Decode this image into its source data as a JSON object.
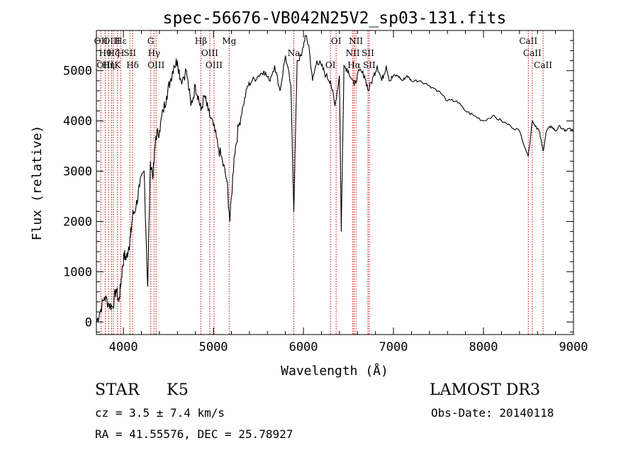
{
  "chart_data": {
    "type": "line",
    "title": "spec-56676-VB042N25V2_sp03-131.fits",
    "xlabel": "Wavelength (Å)",
    "ylabel": "Flux (relative)",
    "xlim": [
      3700,
      9000
    ],
    "ylim": [
      -250,
      5800
    ],
    "xticks": [
      4000,
      5000,
      6000,
      7000,
      8000,
      9000
    ],
    "yticks": [
      0,
      1000,
      2000,
      3000,
      4000,
      5000
    ],
    "grid": false,
    "line_color": "#000000",
    "marker_color": "#cc0000",
    "series": [
      {
        "x": [
          3700,
          3740,
          3790,
          3840,
          3880,
          3920,
          3950,
          3970,
          3990,
          4010,
          4030,
          4060,
          4080,
          4100,
          4140,
          4180,
          4230,
          4270,
          4300,
          4330,
          4360,
          4400,
          4440,
          4480,
          4520,
          4560,
          4600,
          4640,
          4700,
          4750,
          4800,
          4830,
          4861,
          4900,
          4940,
          5000,
          5050,
          5100,
          5150,
          5183,
          5230,
          5280,
          5330,
          5380,
          5430,
          5500,
          5560,
          5620,
          5680,
          5740,
          5800,
          5860,
          5893,
          5930,
          5980,
          6020,
          6060,
          6100,
          6150,
          6200,
          6250,
          6300,
          6350,
          6400,
          6420,
          6450,
          6500,
          6563,
          6620,
          6680,
          6720,
          6780,
          6820,
          6870,
          6920,
          6960,
          7000,
          7050,
          7100,
          7150,
          7200,
          7300,
          7400,
          7500,
          7600,
          7700,
          7800,
          7900,
          8000,
          8100,
          8200,
          8300,
          8400,
          8498,
          8542,
          8580,
          8620,
          8662,
          8700,
          8750,
          8800,
          8850,
          8900,
          8950,
          9000
        ],
        "values": [
          0,
          200,
          500,
          350,
          300,
          650,
          400,
          750,
          1100,
          1350,
          1250,
          1500,
          1700,
          2100,
          2300,
          2700,
          3000,
          700,
          3200,
          2900,
          3700,
          3800,
          4200,
          4500,
          4800,
          5100,
          5200,
          4800,
          5000,
          4300,
          4700,
          4500,
          4200,
          4500,
          4200,
          3900,
          3500,
          3200,
          2800,
          2000,
          3300,
          3900,
          4300,
          4700,
          4800,
          4900,
          5000,
          4800,
          5100,
          4600,
          5300,
          4700,
          2200,
          5200,
          5300,
          5700,
          5500,
          4800,
          5200,
          5100,
          4900,
          4800,
          4300,
          4900,
          1800,
          5100,
          5000,
          4700,
          5000,
          4900,
          4600,
          4900,
          5100,
          4800,
          5100,
          4800,
          4900,
          4900,
          4800,
          4900,
          4800,
          4800,
          4700,
          4600,
          4400,
          4400,
          4200,
          4100,
          4000,
          4100,
          4000,
          3900,
          3800,
          3300,
          4000,
          3900,
          3800,
          3400,
          3800,
          3900,
          3800,
          3900,
          3800,
          3850,
          3800
        ]
      }
    ],
    "lines": [
      {
        "x": 3750,
        "labels": [
          "OII"
        ]
      },
      {
        "x": 3798,
        "labels": [
          "Hθ",
          "OIII"
        ]
      },
      {
        "x": 3835,
        "labels": [
          "Hη"
        ]
      },
      {
        "x": 3869,
        "labels": [
          "OIII"
        ]
      },
      {
        "x": 3889,
        "labels": [
          "Hζ"
        ]
      },
      {
        "x": 3934,
        "labels": [
          "K"
        ]
      },
      {
        "x": 3970,
        "labels": [
          "Hε",
          "H"
        ]
      },
      {
        "x": 4072,
        "labels": [
          "SII"
        ]
      },
      {
        "x": 4102,
        "labels": [
          "Hδ"
        ]
      },
      {
        "x": 4304,
        "labels": [
          "G"
        ]
      },
      {
        "x": 4340,
        "labels": [
          "Hγ"
        ]
      },
      {
        "x": 4363,
        "labels": [
          "OIII"
        ]
      },
      {
        "x": 4861,
        "labels": [
          "Hβ"
        ]
      },
      {
        "x": 4959,
        "labels": [
          "OIII"
        ]
      },
      {
        "x": 5007,
        "labels": [
          "OIII"
        ]
      },
      {
        "x": 5175,
        "labels": [
          "Mg"
        ]
      },
      {
        "x": 5893,
        "labels": [
          "Na"
        ]
      },
      {
        "x": 6300,
        "labels": [
          "OI"
        ]
      },
      {
        "x": 6363,
        "labels": [
          "OI"
        ]
      },
      {
        "x": 6548,
        "labels": [
          "NII"
        ]
      },
      {
        "x": 6563,
        "labels": [
          "Hα"
        ]
      },
      {
        "x": 6583,
        "labels": [
          "NII"
        ]
      },
      {
        "x": 6716,
        "labels": [
          "SII"
        ]
      },
      {
        "x": 6731,
        "labels": [
          "SII"
        ]
      },
      {
        "x": 8498,
        "labels": [
          "CaII"
        ]
      },
      {
        "x": 8542,
        "labels": [
          "CaII"
        ]
      },
      {
        "x": 8662,
        "labels": [
          "CaII"
        ]
      }
    ]
  },
  "info": {
    "class_label": "STAR",
    "subclass": "K5",
    "redshift": "cz = 3.5 ± 7.4 km/s",
    "coords": "RA =  41.55576, DEC =  25.78927",
    "survey": "LAMOST DR3",
    "obs_date": "Obs-Date: 20140118"
  }
}
